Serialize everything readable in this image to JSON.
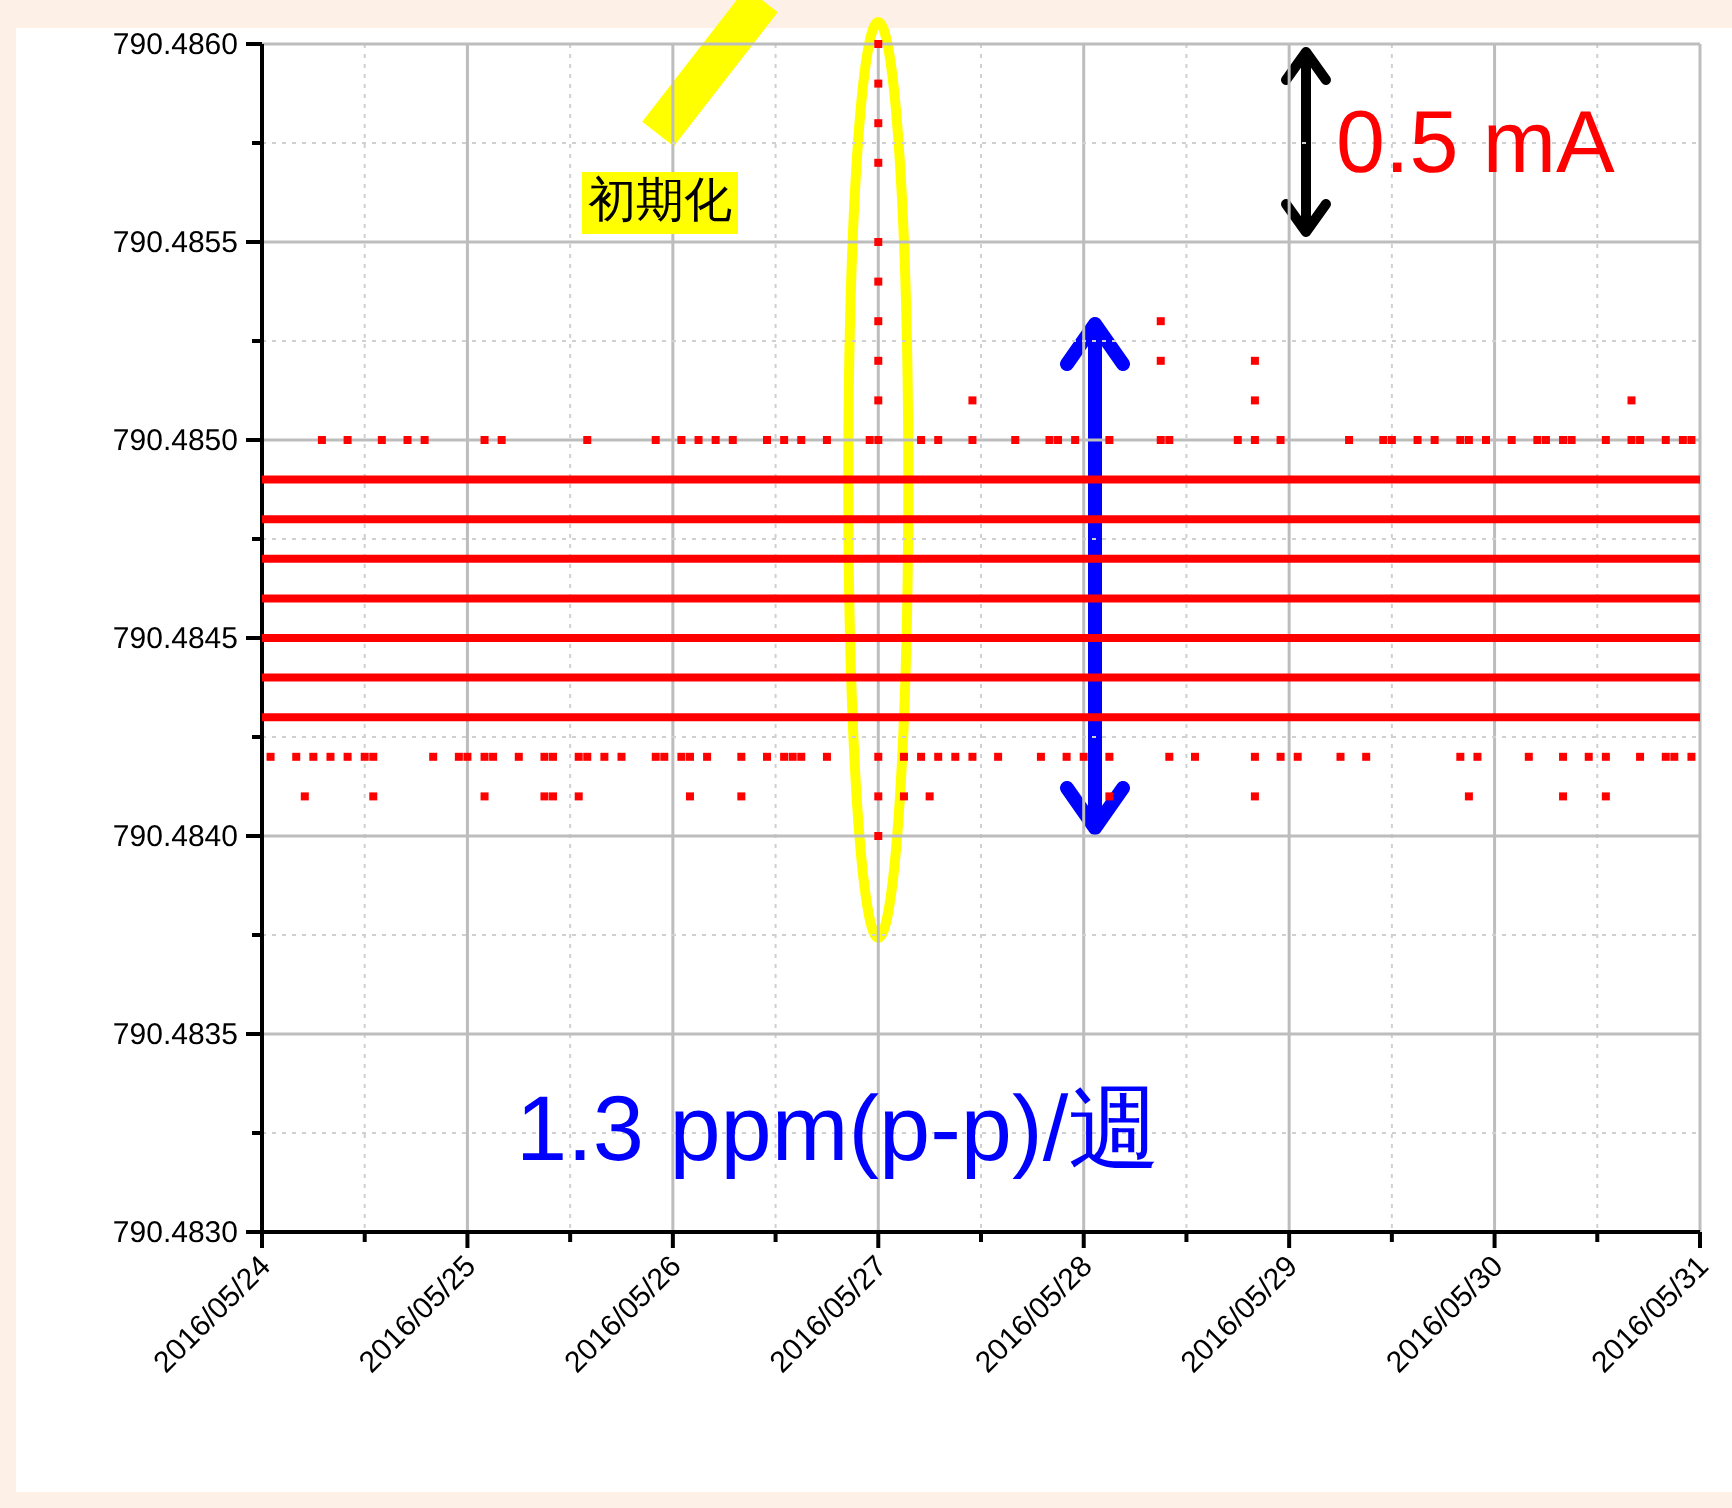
{
  "chart_data": {
    "type": "scatter",
    "grid": true,
    "xlim": [
      "2016-05-24",
      "2016-05-31"
    ],
    "ylim": [
      790.483,
      790.486
    ],
    "xticks": [
      {
        "value": "2016-05-24",
        "label": "2016/05/24"
      },
      {
        "value": "2016-05-24T12:00",
        "label": null
      },
      {
        "value": "2016-05-25",
        "label": "2016/05/25"
      },
      {
        "value": "2016-05-25T12:00",
        "label": null
      },
      {
        "value": "2016-05-26",
        "label": "2016/05/26"
      },
      {
        "value": "2016-05-26T12:00",
        "label": null
      },
      {
        "value": "2016-05-27",
        "label": "2016/05/27"
      },
      {
        "value": "2016-05-27T12:00",
        "label": null
      },
      {
        "value": "2016-05-28",
        "label": "2016/05/28"
      },
      {
        "value": "2016-05-28T12:00",
        "label": null
      },
      {
        "value": "2016-05-29",
        "label": "2016/05/29"
      },
      {
        "value": "2016-05-29T12:00",
        "label": null
      },
      {
        "value": "2016-05-30",
        "label": "2016/05/30"
      },
      {
        "value": "2016-05-30T12:00",
        "label": null
      },
      {
        "value": "2016-05-31",
        "label": "2016/05/31"
      }
    ],
    "yticks": [
      {
        "value": 790.483,
        "label": "790.4830"
      },
      {
        "value": 790.48325,
        "label": null
      },
      {
        "value": 790.4835,
        "label": "790.4835"
      },
      {
        "value": 790.48375,
        "label": null
      },
      {
        "value": 790.484,
        "label": "790.4840"
      },
      {
        "value": 790.48425,
        "label": null
      },
      {
        "value": 790.4845,
        "label": "790.4845"
      },
      {
        "value": 790.48475,
        "label": null
      },
      {
        "value": 790.485,
        "label": "790.4850"
      },
      {
        "value": 790.48525,
        "label": null
      },
      {
        "value": 790.4855,
        "label": "790.4855"
      },
      {
        "value": 790.48575,
        "label": null
      },
      {
        "value": 790.486,
        "label": "790.4860"
      }
    ],
    "annotations": [
      "初期化",
      "0.5 mA",
      "1.3 ppm(p-p)/週"
    ],
    "series": [
      {
        "type": "line",
        "color": "#ff0000",
        "x": [
          "2016-05-24",
          "2016-05-31"
        ],
        "values": [
          790.4849,
          790.4849
        ]
      },
      {
        "type": "line",
        "color": "#ff0000",
        "x": [
          "2016-05-24",
          "2016-05-31"
        ],
        "values": [
          790.4848,
          790.4848
        ]
      },
      {
        "type": "line",
        "color": "#ff0000",
        "x": [
          "2016-05-24",
          "2016-05-31"
        ],
        "values": [
          790.4847,
          790.4847
        ]
      },
      {
        "type": "line",
        "color": "#ff0000",
        "x": [
          "2016-05-24",
          "2016-05-31"
        ],
        "values": [
          790.4846,
          790.4846
        ]
      },
      {
        "type": "line",
        "color": "#ff0000",
        "x": [
          "2016-05-24",
          "2016-05-31"
        ],
        "values": [
          790.4845,
          790.4845
        ]
      },
      {
        "type": "line",
        "color": "#ff0000",
        "x": [
          "2016-05-24",
          "2016-05-31"
        ],
        "values": [
          790.4844,
          790.4844
        ]
      },
      {
        "type": "line",
        "color": "#ff0000",
        "x": [
          "2016-05-24",
          "2016-05-31"
        ],
        "values": [
          790.4843,
          790.4843
        ]
      },
      {
        "type": "scatter",
        "marker": "square",
        "color": "#ff0000",
        "x": [
          "2016-05-24T07:00",
          "2016-05-24T10:00",
          "2016-05-24T14:00",
          "2016-05-24T17:00",
          "2016-05-24T19:00",
          "2016-05-25T02:00",
          "2016-05-25T04:00",
          "2016-05-25T14:00",
          "2016-05-25T22:00",
          "2016-05-26T01:00",
          "2016-05-26T03:00",
          "2016-05-26T05:00",
          "2016-05-26T07:00",
          "2016-05-26T11:00",
          "2016-05-26T13:00",
          "2016-05-26T15:00",
          "2016-05-26T18:00",
          "2016-05-26T23:00",
          "2016-05-27T05:00",
          "2016-05-27T07:00",
          "2016-05-27T11:00",
          "2016-05-27T16:00",
          "2016-05-27T20:00",
          "2016-05-27T21:00",
          "2016-05-27T23:00",
          "2016-05-28T03:00",
          "2016-05-28T09:00",
          "2016-05-28T10:00",
          "2016-05-28T18:00",
          "2016-05-28T20:00",
          "2016-05-28T23:00",
          "2016-05-29T07:00",
          "2016-05-29T11:00",
          "2016-05-29T12:00",
          "2016-05-29T15:00",
          "2016-05-29T17:00",
          "2016-05-29T20:00",
          "2016-05-29T21:00",
          "2016-05-29T23:00",
          "2016-05-30T02:00",
          "2016-05-30T05:00",
          "2016-05-30T06:00",
          "2016-05-30T08:00",
          "2016-05-30T09:00",
          "2016-05-30T13:00",
          "2016-05-30T16:00",
          "2016-05-30T17:00",
          "2016-05-30T20:00",
          "2016-05-30T22:00",
          "2016-05-30T23:00"
        ],
        "values": [
          790.485,
          790.485,
          790.485,
          790.485,
          790.485,
          790.485,
          790.485,
          790.485,
          790.485,
          790.485,
          790.485,
          790.485,
          790.485,
          790.485,
          790.485,
          790.485,
          790.485,
          790.485,
          790.485,
          790.485,
          790.485,
          790.485,
          790.485,
          790.485,
          790.485,
          790.485,
          790.485,
          790.485,
          790.485,
          790.485,
          790.485,
          790.485,
          790.485,
          790.485,
          790.485,
          790.485,
          790.485,
          790.485,
          790.485,
          790.485,
          790.485,
          790.485,
          790.485,
          790.485,
          790.485,
          790.485,
          790.485,
          790.485,
          790.485,
          790.485
        ]
      },
      {
        "type": "scatter",
        "marker": "square",
        "color": "#ff0000",
        "x": [
          "2016-05-24T01:00",
          "2016-05-24T04:00",
          "2016-05-24T06:00",
          "2016-05-24T08:00",
          "2016-05-24T10:00",
          "2016-05-24T12:00",
          "2016-05-24T13:00",
          "2016-05-24T20:00",
          "2016-05-24T23:00",
          "2016-05-25T00:00",
          "2016-05-25T02:00",
          "2016-05-25T03:00",
          "2016-05-25T06:00",
          "2016-05-25T09:00",
          "2016-05-25T10:00",
          "2016-05-25T13:00",
          "2016-05-25T14:00",
          "2016-05-25T16:00",
          "2016-05-25T18:00",
          "2016-05-25T22:00",
          "2016-05-25T23:00",
          "2016-05-26T01:00",
          "2016-05-26T02:00",
          "2016-05-26T04:00",
          "2016-05-26T08:00",
          "2016-05-26T11:00",
          "2016-05-26T13:00",
          "2016-05-26T14:00",
          "2016-05-26T15:00",
          "2016-05-26T18:00",
          "2016-05-27T00:00",
          "2016-05-27T03:00",
          "2016-05-27T05:00",
          "2016-05-27T07:00",
          "2016-05-27T09:00",
          "2016-05-27T11:00",
          "2016-05-27T14:00",
          "2016-05-27T19:00",
          "2016-05-27T22:00",
          "2016-05-28T00:00",
          "2016-05-28T03:00",
          "2016-05-28T10:00",
          "2016-05-28T13:00",
          "2016-05-28T20:00",
          "2016-05-28T23:00",
          "2016-05-29T01:00",
          "2016-05-29T06:00",
          "2016-05-29T09:00",
          "2016-05-29T20:00",
          "2016-05-29T22:00",
          "2016-05-30T04:00",
          "2016-05-30T08:00",
          "2016-05-30T11:00",
          "2016-05-30T13:00",
          "2016-05-30T17:00",
          "2016-05-30T20:00",
          "2016-05-30T21:00",
          "2016-05-30T23:00"
        ],
        "values": [
          790.4842,
          790.4842,
          790.4842,
          790.4842,
          790.4842,
          790.4842,
          790.4842,
          790.4842,
          790.4842,
          790.4842,
          790.4842,
          790.4842,
          790.4842,
          790.4842,
          790.4842,
          790.4842,
          790.4842,
          790.4842,
          790.4842,
          790.4842,
          790.4842,
          790.4842,
          790.4842,
          790.4842,
          790.4842,
          790.4842,
          790.4842,
          790.4842,
          790.4842,
          790.4842,
          790.4842,
          790.4842,
          790.4842,
          790.4842,
          790.4842,
          790.4842,
          790.4842,
          790.4842,
          790.4842,
          790.4842,
          790.4842,
          790.4842,
          790.4842,
          790.4842,
          790.4842,
          790.4842,
          790.4842,
          790.4842,
          790.4842,
          790.4842,
          790.4842,
          790.4842,
          790.4842,
          790.4842,
          790.4842,
          790.4842,
          790.4842,
          790.4842
        ]
      },
      {
        "type": "scatter",
        "marker": "square",
        "color": "#ff0000",
        "x": [
          "2016-05-24T05:00",
          "2016-05-24T13:00",
          "2016-05-25T02:00",
          "2016-05-25T09:00",
          "2016-05-25T10:00",
          "2016-05-25T13:00",
          "2016-05-26T02:00",
          "2016-05-26T08:00",
          "2016-05-27T00:00",
          "2016-05-27T03:00",
          "2016-05-27T06:00",
          "2016-05-28T03:00",
          "2016-05-28T20:00",
          "2016-05-29T21:00",
          "2016-05-30T08:00",
          "2016-05-30T13:00"
        ],
        "values": [
          790.4841,
          790.4841,
          790.4841,
          790.4841,
          790.4841,
          790.4841,
          790.4841,
          790.4841,
          790.4841,
          790.4841,
          790.4841,
          790.4841,
          790.4841,
          790.4841,
          790.4841,
          790.4841
        ]
      },
      {
        "type": "scatter",
        "marker": "square",
        "color": "#ff0000",
        "x": [
          "2016-05-27T00:00",
          "2016-05-27T00:00",
          "2016-05-27T00:00",
          "2016-05-27T00:00",
          "2016-05-27T00:00",
          "2016-05-27T00:00",
          "2016-05-27T00:00",
          "2016-05-27T00:00",
          "2016-05-27T00:00",
          "2016-05-27T00:00",
          "2016-05-27T00:00",
          "2016-05-27T11:00",
          "2016-05-28T09:00",
          "2016-05-28T09:00",
          "2016-05-28T20:00",
          "2016-05-28T20:00",
          "2016-05-30T16:00"
        ],
        "values": [
          790.486,
          790.4859,
          790.4858,
          790.4857,
          790.4855,
          790.4854,
          790.4853,
          790.4852,
          790.4851,
          790.485,
          790.484,
          790.4851,
          790.4853,
          790.4852,
          790.4852,
          790.4851,
          790.4851
        ]
      }
    ]
  }
}
